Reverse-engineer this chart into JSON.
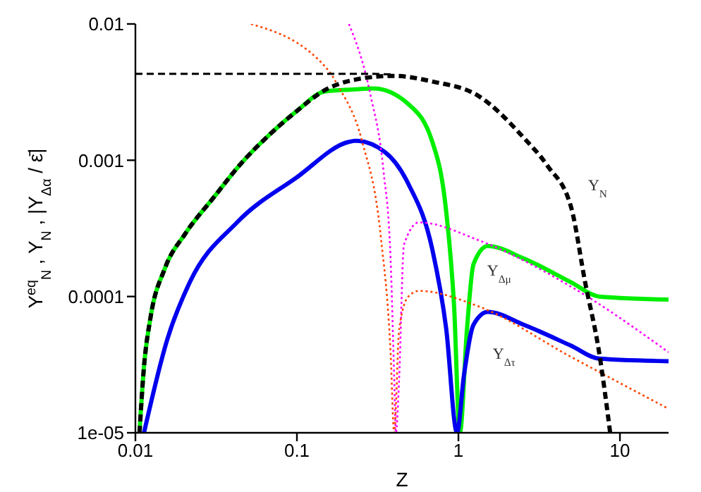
{
  "chart_data": {
    "type": "line",
    "xlabel": "Z",
    "ylabel": "Y$^{eq}$$_{N}$ ,  Y$_{N}$ ,  |Y$_{Δα}$ / ε̄|",
    "log": "xy",
    "marker": "none",
    "xlim": [
      0.01,
      20
    ],
    "xticks": [
      0.01,
      0.1,
      1,
      10
    ],
    "ylim": [
      1e-05,
      0.01
    ],
    "yticks": [
      {
        "value": 1e-05,
        "label": "1e-05"
      },
      0.0001,
      0.001,
      0.01
    ],
    "series": [
      {
        "color": "#000000",
        "line_style": "dashed",
        "x": [
          0.01,
          0.1,
          0.3,
          0.4
        ],
        "values": [
          0.0043,
          0.0043,
          0.0043,
          0.00425
        ]
      },
      {
        "name": "Y$_{N}$",
        "color": "#000000",
        "line_style": "dashed",
        "x": [
          0.0106,
          0.0113,
          0.0124,
          0.0152,
          0.0204,
          0.0304,
          0.0452,
          0.0672,
          0.1,
          0.149,
          0.221,
          0.4,
          0.69,
          1.32,
          2.54,
          3.56,
          4.99,
          6.09,
          7.43,
          8.7
        ],
        "values": [
          1e-05,
          3.05e-05,
          7e-05,
          0.00016,
          0.00029,
          0.00053,
          0.00095,
          0.00153,
          0.0023,
          0.00327,
          0.00387,
          0.00416,
          0.00378,
          0.00298,
          0.00146,
          0.00091,
          0.00045,
          0.000127,
          3.9e-05,
          1e-05
        ]
      },
      {
        "name": "Y$_{Δμ}$",
        "color": "#00ee00",
        "line_style": "solid",
        "x": [
          0.0106,
          0.0113,
          0.0124,
          0.0152,
          0.0204,
          0.0304,
          0.0452,
          0.0672,
          0.1,
          0.149,
          0.221,
          0.298,
          0.49,
          0.69,
          0.84,
          0.94,
          1.02,
          1.13,
          1.24,
          1.52,
          2.54,
          4.99,
          7.43,
          20
        ],
        "values": [
          1e-05,
          3.05e-05,
          7e-05,
          0.00016,
          0.00029,
          0.00053,
          0.00095,
          0.00153,
          0.0023,
          0.0032,
          0.0033,
          0.00336,
          0.00258,
          0.00136,
          0.00042,
          8.5e-05,
          1e-05,
          5.8e-05,
          0.000173,
          0.000235,
          0.00019,
          0.000127,
          0.0001,
          9.5e-05
        ]
      },
      {
        "name": "Y$_{Δτ}$",
        "color": "#0000ee",
        "line_style": "solid",
        "x": [
          0.0113,
          0.0158,
          0.0217,
          0.0426,
          0.1,
          0.208,
          0.23,
          0.35,
          0.49,
          0.69,
          0.84,
          0.98,
          1.08,
          1.24,
          1.52,
          2.54,
          4.99,
          7.43,
          20
        ],
        "values": [
          1e-05,
          4.9e-05,
          0.000127,
          0.00035,
          0.00075,
          0.00136,
          0.00139,
          0.00115,
          0.00067,
          0.00022,
          5.8e-05,
          1e-05,
          2.6e-05,
          6.2e-05,
          7.7e-05,
          6.2e-05,
          4.35e-05,
          3.5e-05,
          3.35e-05
        ]
      },
      {
        "color": "#ff00ff",
        "line_style": "dotted",
        "x": [
          0.21,
          0.286,
          0.343,
          0.38,
          0.4,
          0.41,
          0.43,
          0.46,
          0.57,
          1.32,
          4.99,
          20
        ],
        "values": [
          0.01,
          0.00298,
          0.00085,
          0.00019,
          2.6e-05,
          1e-05,
          2.6e-05,
          0.00024,
          0.00035,
          0.00026,
          0.000118,
          3.9e-05
        ]
      },
      {
        "color": "#ff4500",
        "line_style": "dotted",
        "x": [
          0.052,
          0.158,
          0.18,
          0.254,
          0.33,
          0.38,
          0.4,
          0.43,
          0.49,
          0.57,
          1.32,
          4.99,
          20
        ],
        "values": [
          0.01,
          0.0045,
          0.0035,
          0.00136,
          0.00028,
          3.9e-05,
          1e-05,
          5.8e-05,
          0.0001,
          0.00011,
          8.5e-05,
          3.6e-05,
          1.5e-05
        ]
      }
    ]
  }
}
